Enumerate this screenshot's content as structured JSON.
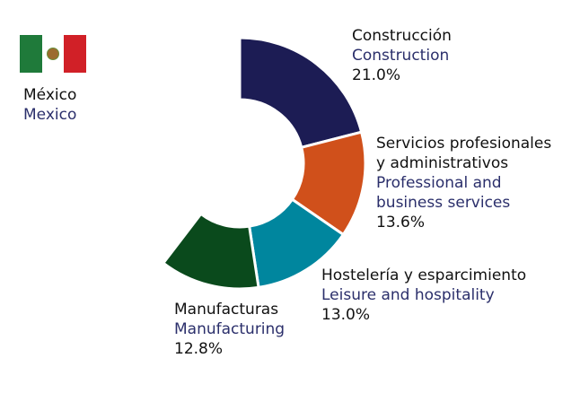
{
  "country": {
    "name_es": "México",
    "name_en": "Mexico",
    "flag_colors": [
      "#1f7a3a",
      "#ffffff",
      "#d12027"
    ]
  },
  "chart_data": {
    "type": "pie",
    "title": "",
    "slices": [
      {
        "label_es": "Construcción",
        "label_en": "Construction",
        "value": 21.0,
        "value_label": "21.0%",
        "color": "#1c1c54"
      },
      {
        "label_es": "Servicios profesionales y administrativos",
        "label_es_lines": [
          "Servicios profesionales",
          "y administrativos"
        ],
        "label_en": "Professional and business services",
        "label_en_lines": [
          "Professional and",
          "business services"
        ],
        "value": 13.6,
        "value_label": "13.6%",
        "color": "#d0501b"
      },
      {
        "label_es": "Hostelería y esparcimiento",
        "label_en": "Leisure and hospitality",
        "value": 13.0,
        "value_label": "13.0%",
        "color": "#00869e"
      },
      {
        "label_es": "Manufacturas",
        "label_en": "Manufacturing",
        "value": 12.8,
        "value_label": "12.8%",
        "color": "#0a4a1c"
      }
    ]
  }
}
